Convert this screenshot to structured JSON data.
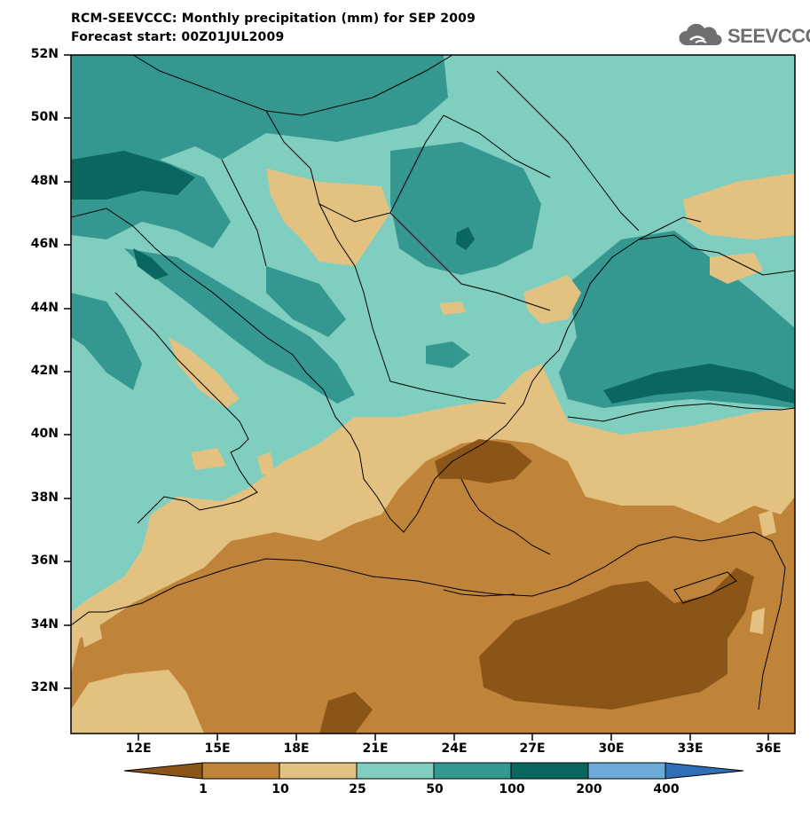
{
  "title_line1": "RCM-SEEVCCC: Monthly precipitation (mm) for SEP 2009",
  "title_line2": "Forecast start: 00Z01JUL2009",
  "logo_text": "SEEVCCC",
  "logo_icon": "cloud-icon",
  "y_axis_labels": [
    "52N",
    "50N",
    "48N",
    "46N",
    "44N",
    "42N",
    "40N",
    "38N",
    "36N",
    "34N",
    "32N"
  ],
  "x_axis_labels": [
    "12E",
    "15E",
    "18E",
    "21E",
    "24E",
    "27E",
    "30E",
    "33E",
    "36E"
  ],
  "colorbar": {
    "thresholds": [
      "1",
      "10",
      "25",
      "50",
      "100",
      "200",
      "400"
    ],
    "colors": [
      "#8c5518",
      "#bf843a",
      "#e3c281",
      "#80cec0",
      "#349790",
      "#0a665e",
      "#6cabd9",
      "#2e6fb5"
    ]
  }
}
